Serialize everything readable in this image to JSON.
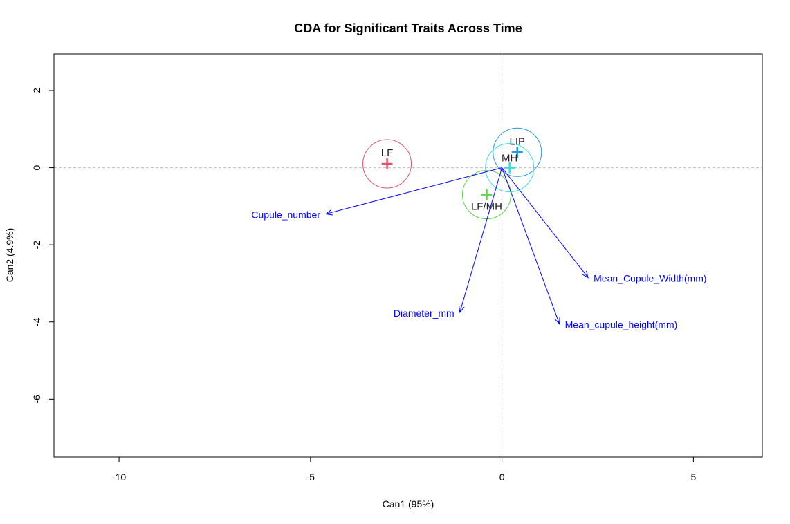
{
  "chart_data": {
    "type": "scatter",
    "title": "CDA for Significant Traits Across Time",
    "xlabel": "Can1 (95%)",
    "ylabel": "Can2 (4.9%)",
    "xlim": [
      -11.7,
      6.8
    ],
    "ylim": [
      -7.5,
      2.95
    ],
    "x_ticks": [
      -10,
      -5,
      0,
      5
    ],
    "x_tick_labels": [
      "-10",
      "-5",
      "0",
      "5"
    ],
    "y_ticks": [
      2,
      0,
      -2,
      -4,
      -6
    ],
    "y_tick_labels": [
      "2",
      "0",
      "-2",
      "-4",
      "-6"
    ],
    "reference_lines": {
      "x": 0,
      "y": 0,
      "style": "dashed",
      "color": "#bdbdbd"
    },
    "groups": [
      {
        "label": "LF",
        "x": -3.0,
        "y": 0.1,
        "color": "#df536b"
      },
      {
        "label": "LF/MH",
        "x": -0.4,
        "y": -0.7,
        "color": "#61d04f"
      },
      {
        "label": "LIP",
        "x": 0.4,
        "y": 0.4,
        "color": "#2297e6"
      },
      {
        "label": "MH",
        "x": 0.2,
        "y": 0.0,
        "color": "#28e2e5"
      }
    ],
    "vectors_color": "#0000ff",
    "vectors": [
      {
        "label": "Cupule_number",
        "x": -4.6,
        "y": -1.2
      },
      {
        "label": "Diameter_mm",
        "x": -1.1,
        "y": -3.75
      },
      {
        "label": "Mean_cupule_height(mm)",
        "x": 1.5,
        "y": -4.05
      },
      {
        "label": "Mean_Cupule_Width(mm)",
        "x": 2.25,
        "y": -2.85
      }
    ]
  }
}
